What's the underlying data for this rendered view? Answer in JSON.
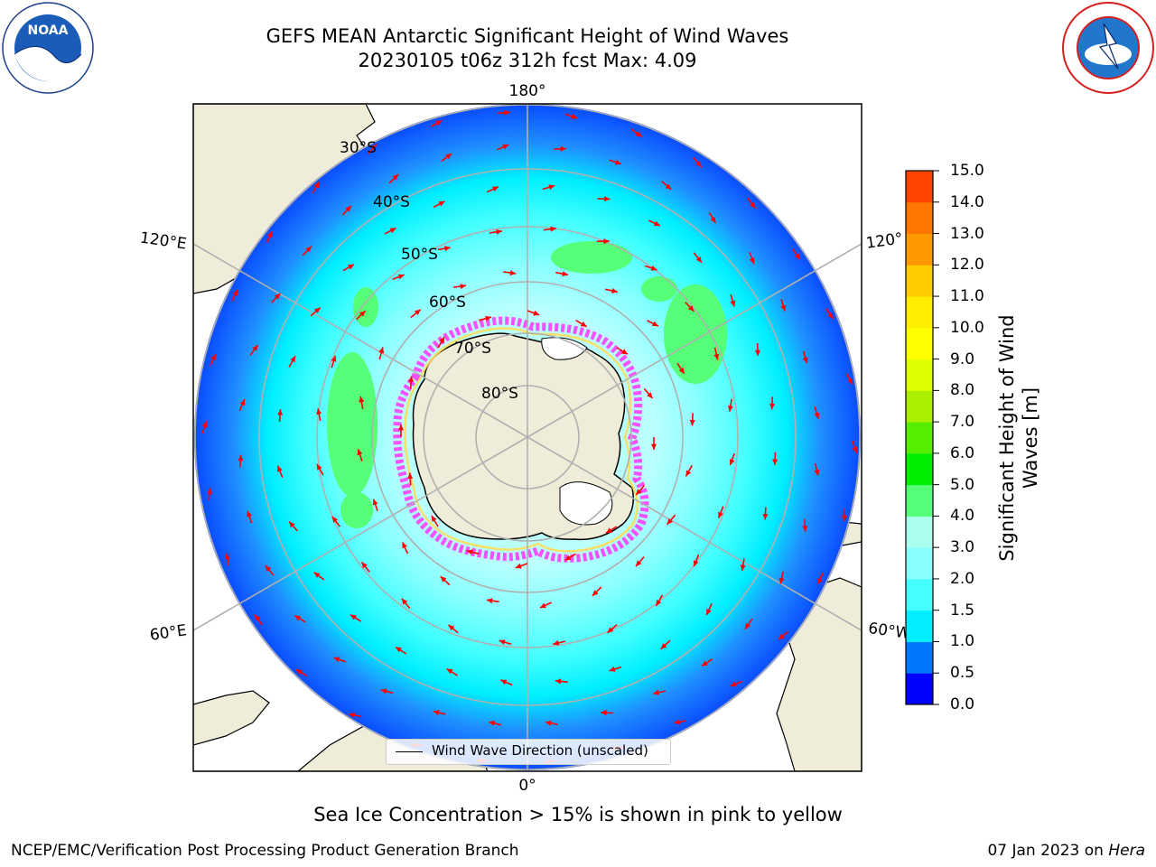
{
  "title": {
    "line1": "GEFS MEAN Antarctic Significant Height of Wind Waves",
    "line2": "20230105 t06z 312h fcst   Max: 4.09"
  },
  "logos": {
    "left": {
      "icon": "noaa-logo",
      "text": "NOAA"
    },
    "right": {
      "icon": "nws-logo",
      "text": "NATIONAL WEATHER SERVICE"
    }
  },
  "map": {
    "projection": "south-polar-stereographic",
    "longitude_labels": {
      "top": "180°",
      "bottom": "0°",
      "upper_left": "120°E",
      "upper_right": "120°",
      "lower_left": "60°E",
      "lower_right": "60°W"
    },
    "latitude_labels": [
      "30°S",
      "40°S",
      "50°S",
      "60°S",
      "70°S",
      "80°S"
    ],
    "colors": {
      "land": "#efecd9",
      "sea_ice": "#ff33ff",
      "arrows": "#ff0000",
      "gridlines": "#b0b0b0"
    }
  },
  "legend": {
    "label": "Wind Wave Direction (unscaled)"
  },
  "colorbar": {
    "label": "Significant Height of Wind Waves [m]",
    "ticks": [
      "15.0",
      "14.0",
      "13.0",
      "12.0",
      "11.0",
      "10.0",
      "9.0",
      "8.0",
      "7.0",
      "6.0",
      "5.0",
      "4.0",
      "3.0",
      "2.0",
      "1.5",
      "1.0",
      "0.5",
      "0.0"
    ],
    "colors": [
      "#0000ff",
      "#0077ff",
      "#00eeff",
      "#44ffff",
      "#88ffff",
      "#aaffee",
      "#55ff77",
      "#00ee00",
      "#55ee00",
      "#aaee00",
      "#ddff00",
      "#ffff00",
      "#ffee00",
      "#ffcc00",
      "#ff9900",
      "#ff7700",
      "#ff4400",
      "#ff0000"
    ]
  },
  "footer": {
    "note": "Sea Ice Concentration > 15% is shown in pink to yellow",
    "left": "NCEP/EMC/Verification Post Processing Product Generation Branch",
    "right_date": "07 Jan 2023 on ",
    "right_host": "Hera"
  }
}
